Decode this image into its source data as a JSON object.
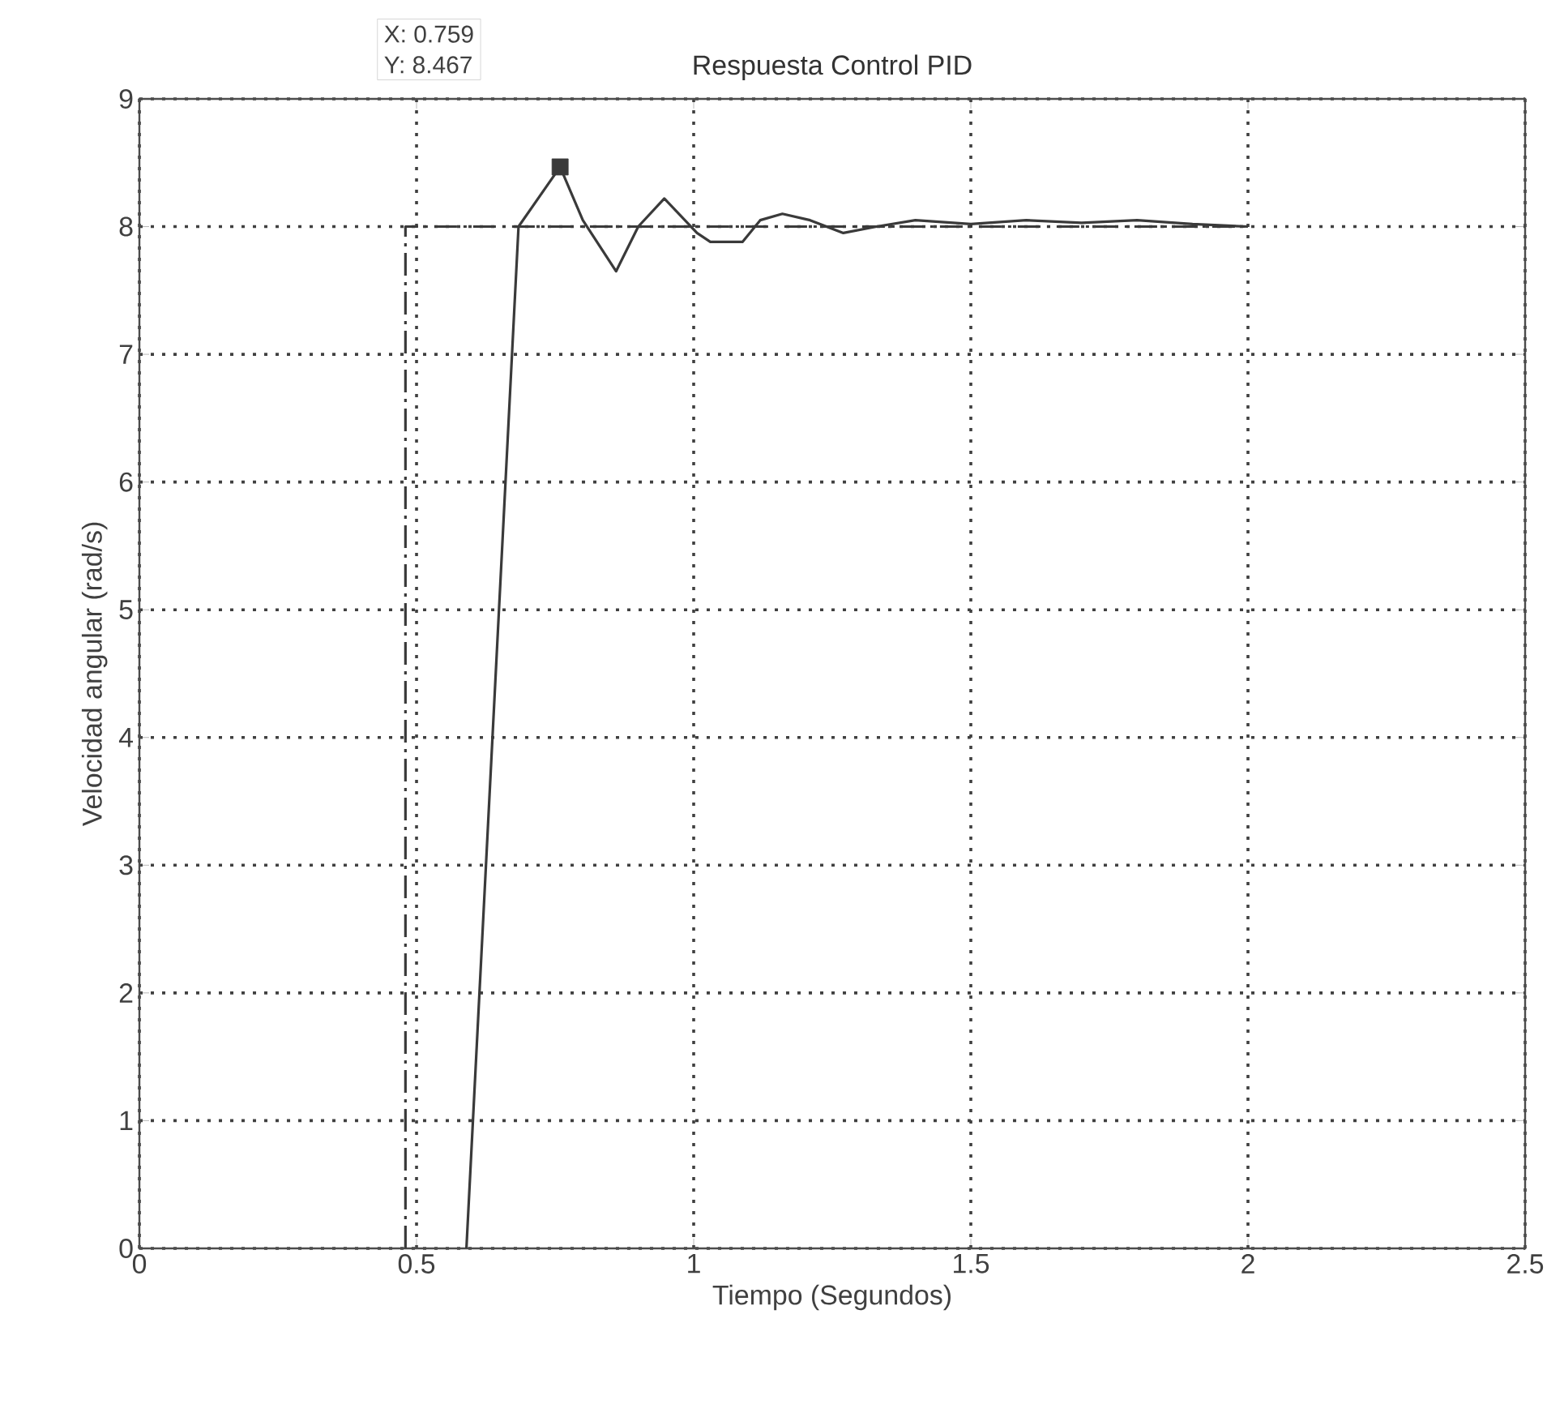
{
  "chart_data": {
    "type": "line",
    "title": "Respuesta Control PID",
    "xlabel": "Tiempo (Segundos)",
    "ylabel": "Velocidad angular (rad/s)",
    "xlim": [
      0,
      2.5
    ],
    "ylim": [
      0,
      9
    ],
    "xticks": [
      0,
      0.5,
      1,
      1.5,
      2,
      2.5
    ],
    "yticks": [
      0,
      1,
      2,
      3,
      4,
      5,
      6,
      7,
      8,
      9
    ],
    "grid": true,
    "annotations": [
      "X: 0.759",
      "Y: 8.467"
    ],
    "series": [
      {
        "type": "line",
        "color": "#3a3a3a",
        "line_style": "solid",
        "marker": "none",
        "x": [
          0.59,
          0.684,
          0.759,
          0.8,
          0.86,
          0.9,
          0.947,
          1.006,
          1.03,
          1.088,
          1.12,
          1.16,
          1.21,
          1.27,
          1.33,
          1.4,
          1.5,
          1.6,
          1.7,
          1.8,
          1.9,
          2.0
        ],
        "values": [
          0,
          8.0,
          8.467,
          8.05,
          7.65,
          8.0,
          8.22,
          7.95,
          7.88,
          7.88,
          8.05,
          8.1,
          8.05,
          7.95,
          8.0,
          8.05,
          8.02,
          8.05,
          8.03,
          8.05,
          8.02,
          8.0
        ]
      },
      {
        "type": "line",
        "color": "#3a3a3a",
        "line_style": "dashed",
        "marker": "none",
        "x": [
          0.48,
          0.48,
          2.0
        ],
        "values": [
          0,
          8,
          8
        ]
      },
      {
        "type": "scatter",
        "color": "#3a3a3a",
        "marker": "square",
        "x": [
          0.759
        ],
        "values": [
          8.467
        ]
      }
    ]
  }
}
